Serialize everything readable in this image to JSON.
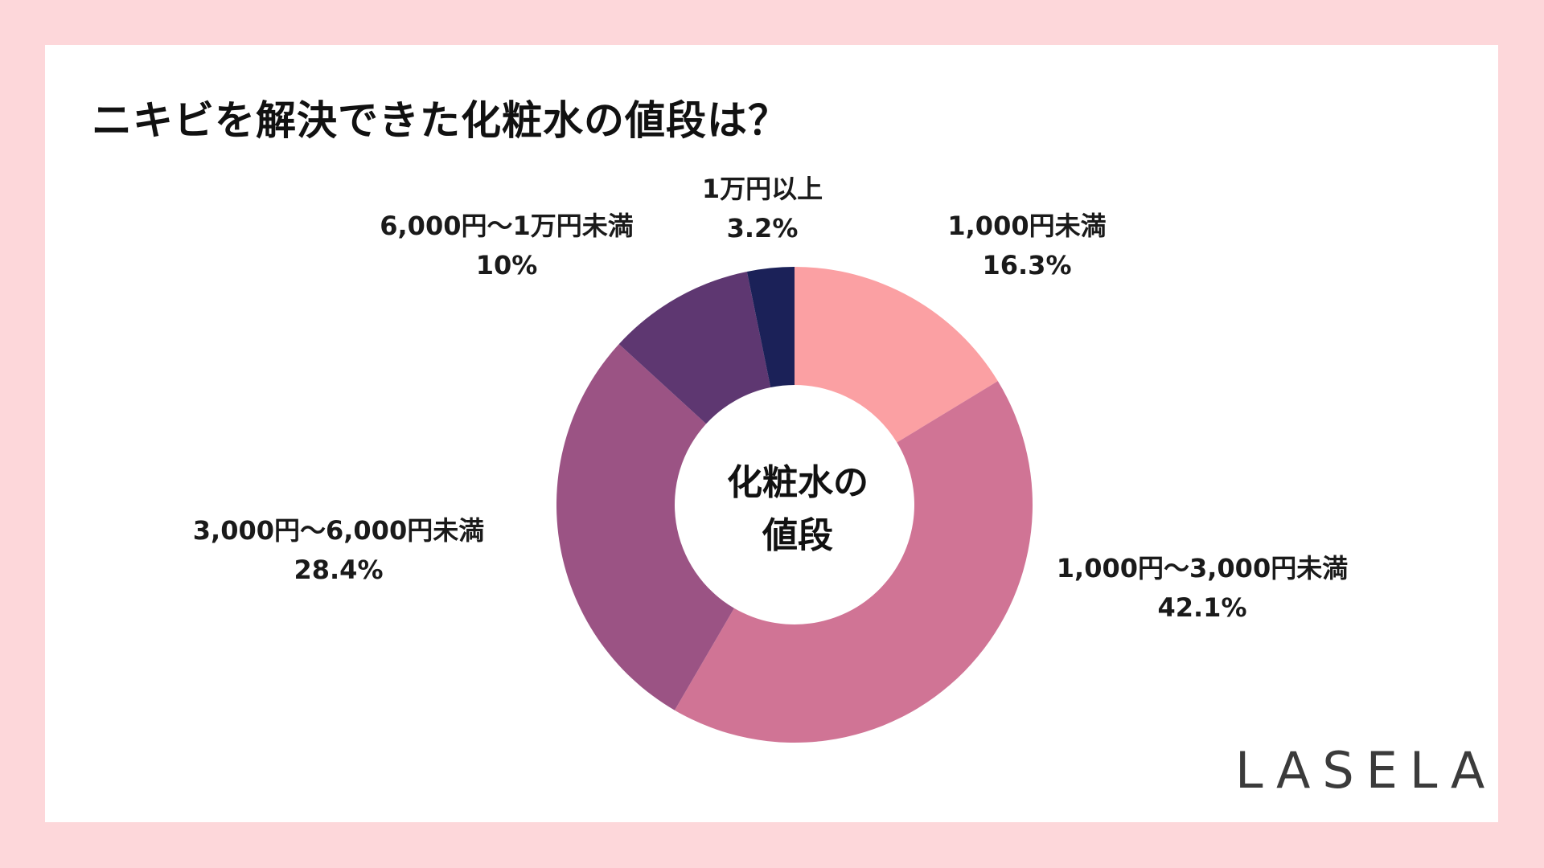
{
  "title": "ニキビを解決できた化粧水の値段は？",
  "center_label_line1": "化粧水の",
  "center_label_line2": "値段",
  "logo": "LASELA",
  "colors": {
    "background": "#fdd7da",
    "card": "#ffffff"
  },
  "chart_data": {
    "type": "pie",
    "donut": true,
    "slices": [
      {
        "label": "1,000円未満",
        "value": 16.3,
        "display": "16.3%",
        "color": "#fba0a3"
      },
      {
        "label": "1,000円〜3,000円未満",
        "value": 42.1,
        "display": "42.1%",
        "color": "#d07495"
      },
      {
        "label": "3,000円〜6,000円未満",
        "value": 28.4,
        "display": "28.4%",
        "color": "#9b5384"
      },
      {
        "label": "6,000円〜1万円未満",
        "value": 10,
        "display": "10%",
        "color": "#5e3771"
      },
      {
        "label": "1万円以上",
        "value": 3.2,
        "display": "3.2%",
        "color": "#1b2158"
      }
    ]
  }
}
